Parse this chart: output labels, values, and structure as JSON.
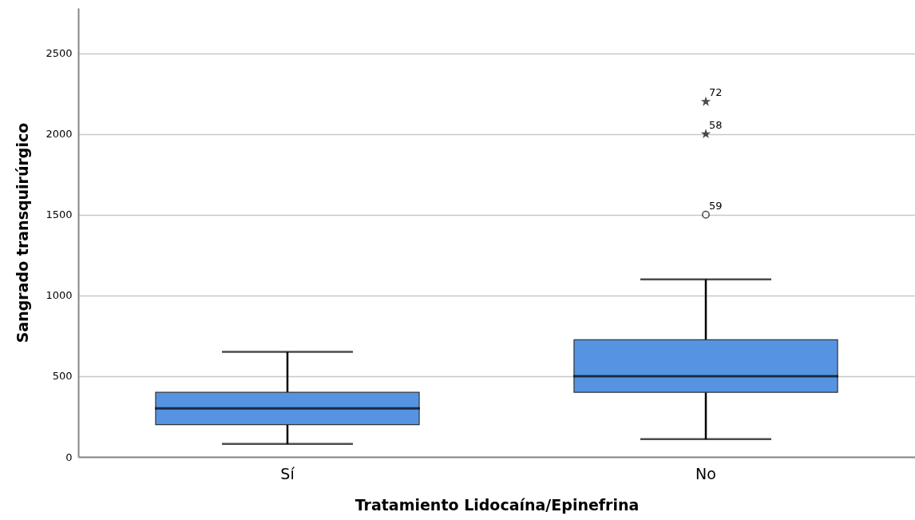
{
  "chart_data": {
    "type": "box",
    "xlabel": "Tratamiento Lidocaína/Epinefrina",
    "ylabel": "Sangrado transquirúrgico",
    "categories": [
      "Sí",
      "No"
    ],
    "series": [
      {
        "color": "#5694e2",
        "boxes": [
          {
            "low": 80,
            "q1": 200,
            "median": 300,
            "q3": 400,
            "high": 650
          },
          {
            "low": 110,
            "q1": 400,
            "median": 500,
            "q3": 725,
            "high": 1100,
            "outliers": [
              1500,
              2000,
              2200
            ]
          }
        ]
      }
    ],
    "ylim": [
      0,
      2780
    ],
    "yticks": [
      0,
      500,
      1000,
      1500,
      2000,
      2500
    ],
    "grid": "y",
    "annotations": [
      "59",
      "58",
      "72"
    ]
  }
}
